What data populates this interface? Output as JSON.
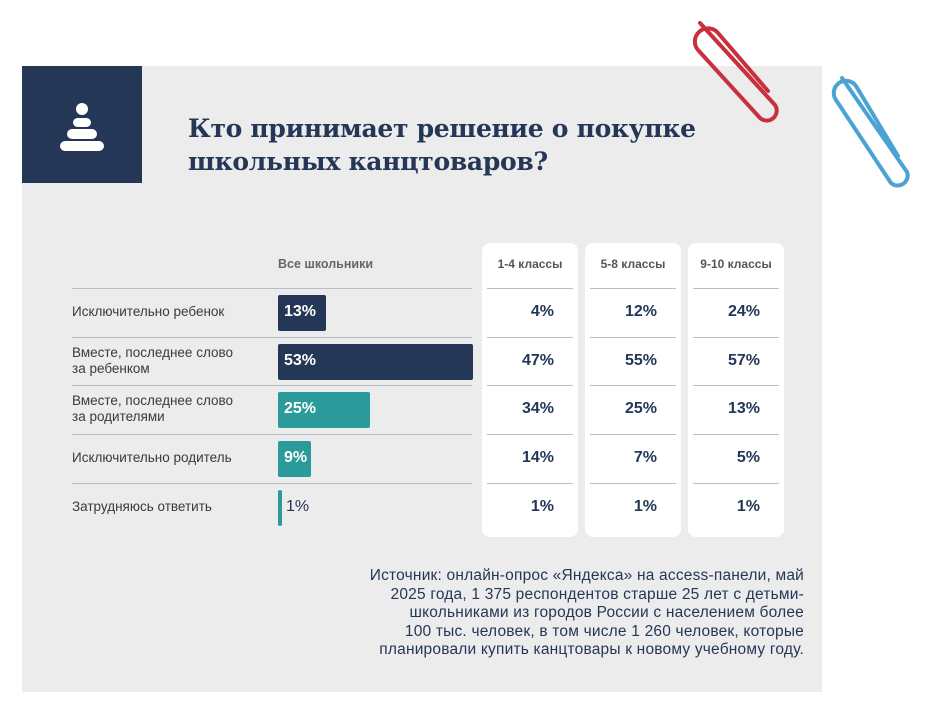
{
  "title_line1": "Кто принимает решение о покупке",
  "title_line2": "школьных канцтоваров?",
  "icon": "pyramid-toy-icon",
  "colors": {
    "dark": "#243756",
    "teal": "#2a9a9a",
    "panel": "#edeced"
  },
  "chart_data": {
    "type": "bar",
    "title": "Кто принимает решение о покупке школьных канцтоваров?",
    "categories": [
      "Исключительно ребенок",
      "Вместе, последнее слово за ребенком",
      "Вместе, последнее слово за родителями",
      "Исключительно родитель",
      "Затрудняюсь ответить"
    ],
    "category_lines": [
      [
        "Исключительно ребенок"
      ],
      [
        "Вместе, последнее слово",
        "за ребенком"
      ],
      [
        "Вместе, последнее слово",
        "за родителями"
      ],
      [
        "Исключительно родитель"
      ],
      [
        "Затрудняюсь ответить"
      ]
    ],
    "bar_colors": [
      "#243756",
      "#243756",
      "#2a9a9a",
      "#2a9a9a",
      "#2a9a9a"
    ],
    "series": [
      {
        "name": "Все школьники",
        "values": [
          13,
          53,
          25,
          9,
          1
        ],
        "labels": [
          "13%",
          "53%",
          "25%",
          "9%",
          "1%"
        ]
      },
      {
        "name": "1-4 классы",
        "values": [
          4,
          47,
          34,
          14,
          1
        ],
        "labels": [
          "4%",
          "47%",
          "34%",
          "14%",
          "1%"
        ]
      },
      {
        "name": "5-8 классы",
        "values": [
          12,
          55,
          25,
          7,
          1
        ],
        "labels": [
          "12%",
          "55%",
          "25%",
          "7%",
          "1%"
        ]
      },
      {
        "name": "9-10 классы",
        "values": [
          24,
          57,
          13,
          5,
          1
        ],
        "labels": [
          "24%",
          "57%",
          "13%",
          "5%",
          "1%"
        ]
      }
    ]
  },
  "source": [
    "Источник: онлайн-опрос «Яндекса» на access-панели, май",
    "2025 года, 1 375 респондентов старше 25 лет с детьми-",
    "школьниками из городов России с населением более",
    "100 тыс. человек, в том числе 1 260 человек, которые",
    "планировали купить канцтовары к новому учебному году."
  ]
}
